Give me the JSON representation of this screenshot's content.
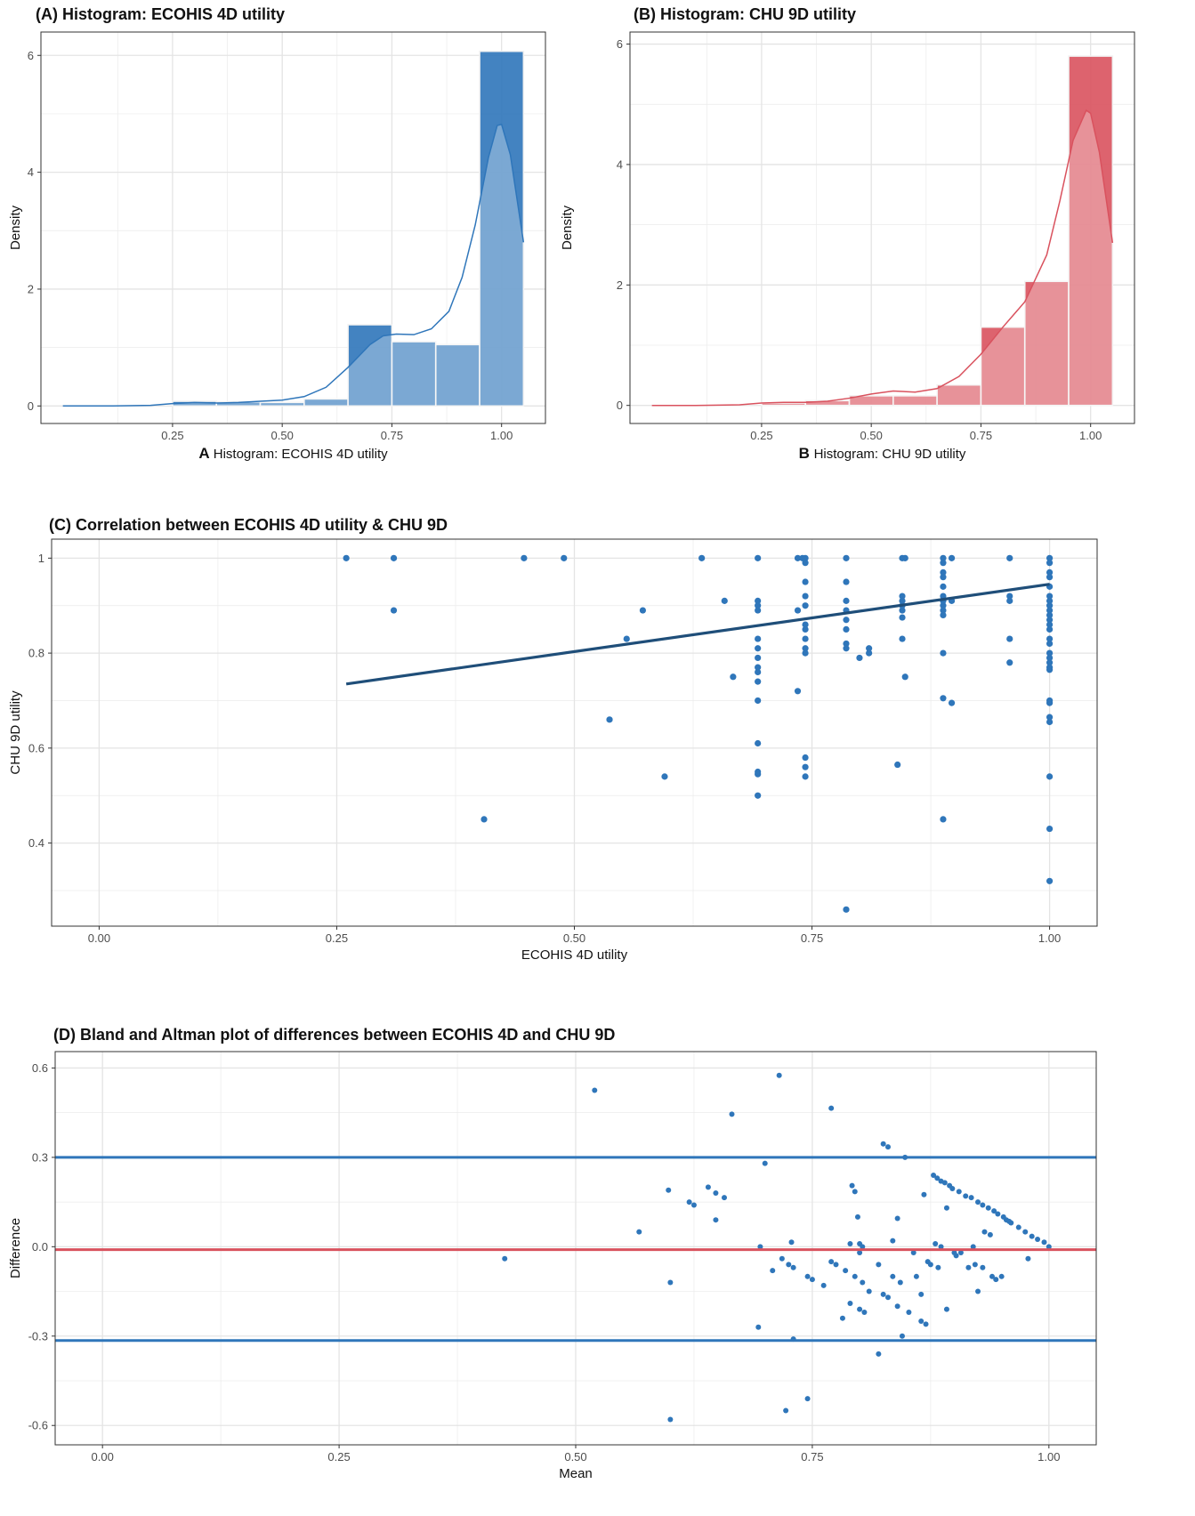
{
  "colors": {
    "blue": "#2f76ba",
    "blue_dark": "#1f4e79",
    "red": "#d9525e",
    "grid": "#ebebeb",
    "axis_text": "#4d4d4d"
  },
  "panels": {
    "a": {
      "title": "(A) Histogram: ECOHIS 4D utility",
      "tag": "A",
      "xlabel": "Histogram: ECOHIS 4D utility",
      "ylabel": "Density"
    },
    "b": {
      "title": "(B) Histogram: CHU 9D utility",
      "tag": "B",
      "xlabel": "Histogram: CHU 9D utility",
      "ylabel": "Density"
    },
    "c": {
      "title": "(C) Correlation between ECOHIS 4D utility & CHU 9D",
      "xlabel": "ECOHIS 4D utility",
      "ylabel": "CHU 9D utility"
    },
    "d": {
      "title": "(D) Bland and Altman plot of differences between ECOHIS 4D and CHU 9D",
      "xlabel": "Mean",
      "ylabel": "Difference"
    }
  },
  "chart_data": [
    {
      "id": "A",
      "type": "bar",
      "title": "(A) Histogram: ECOHIS 4D utility",
      "xlabel": "Histogram: ECOHIS 4D utility",
      "ylabel": "Density",
      "bin_width": 0.1,
      "bin_centers": [
        0.3,
        0.4,
        0.5,
        0.6,
        0.7,
        0.8,
        0.9,
        1.0
      ],
      "values": [
        0.08,
        0.07,
        0.06,
        0.12,
        1.39,
        1.1,
        1.05,
        6.07
      ],
      "density_curve": {
        "x": [
          0.0,
          0.1,
          0.2,
          0.25,
          0.3,
          0.35,
          0.4,
          0.45,
          0.5,
          0.55,
          0.6,
          0.65,
          0.7,
          0.73,
          0.76,
          0.8,
          0.84,
          0.88,
          0.91,
          0.94,
          0.97,
          0.99,
          1.0,
          1.02,
          1.05
        ],
        "y": [
          0.0,
          0.0,
          0.01,
          0.04,
          0.06,
          0.05,
          0.06,
          0.08,
          0.1,
          0.16,
          0.32,
          0.66,
          1.05,
          1.2,
          1.23,
          1.22,
          1.32,
          1.62,
          2.2,
          3.1,
          4.25,
          4.8,
          4.82,
          4.3,
          2.8
        ]
      },
      "xticks": [
        0.25,
        0.5,
        0.75,
        1.0
      ],
      "xtick_labels": [
        "0.25",
        "0.50",
        "0.75",
        "1.00"
      ],
      "yticks": [
        0,
        2,
        4,
        6
      ],
      "xlim": [
        -0.05,
        1.1
      ],
      "ylim": [
        -0.3,
        6.4
      ],
      "color": "#2f76ba"
    },
    {
      "id": "B",
      "type": "bar",
      "title": "(B) Histogram: CHU 9D utility",
      "xlabel": "Histogram: CHU 9D utility",
      "ylabel": "Density",
      "bin_width": 0.1,
      "bin_centers": [
        0.3,
        0.4,
        0.5,
        0.6,
        0.7,
        0.8,
        0.9,
        1.0
      ],
      "values": [
        0.04,
        0.08,
        0.16,
        0.16,
        0.34,
        1.3,
        2.06,
        5.8
      ],
      "density_curve": {
        "x": [
          0.0,
          0.1,
          0.2,
          0.25,
          0.3,
          0.35,
          0.4,
          0.45,
          0.5,
          0.55,
          0.6,
          0.65,
          0.7,
          0.75,
          0.8,
          0.85,
          0.9,
          0.93,
          0.96,
          0.99,
          1.0,
          1.02,
          1.05
        ],
        "y": [
          0.0,
          0.0,
          0.01,
          0.04,
          0.05,
          0.05,
          0.07,
          0.12,
          0.19,
          0.24,
          0.22,
          0.28,
          0.48,
          0.85,
          1.3,
          1.72,
          2.5,
          3.4,
          4.4,
          4.9,
          4.85,
          4.2,
          2.7
        ]
      },
      "xticks": [
        0.25,
        0.5,
        0.75,
        1.0
      ],
      "xtick_labels": [
        "0.25",
        "0.50",
        "0.75",
        "1.00"
      ],
      "yticks": [
        0,
        2,
        4,
        6
      ],
      "xlim": [
        -0.05,
        1.1
      ],
      "ylim": [
        -0.3,
        6.2
      ],
      "color": "#d9525e"
    },
    {
      "id": "C",
      "type": "scatter",
      "title": "(C) Correlation between ECOHIS 4D utility & CHU 9D",
      "xlabel": "ECOHIS 4D utility",
      "ylabel": "CHU 9D utility",
      "points": [
        [
          0.26,
          1.0
        ],
        [
          0.31,
          1.0
        ],
        [
          0.31,
          0.89
        ],
        [
          0.405,
          0.45
        ],
        [
          0.447,
          1.0
        ],
        [
          0.489,
          1.0
        ],
        [
          0.537,
          0.66
        ],
        [
          0.555,
          0.83
        ],
        [
          0.572,
          0.89
        ],
        [
          0.595,
          0.54
        ],
        [
          0.634,
          1.0
        ],
        [
          0.658,
          0.91
        ],
        [
          0.667,
          0.75
        ],
        [
          0.693,
          1.0
        ],
        [
          0.693,
          0.91
        ],
        [
          0.693,
          0.9
        ],
        [
          0.693,
          0.89
        ],
        [
          0.693,
          0.83
        ],
        [
          0.693,
          0.81
        ],
        [
          0.693,
          0.79
        ],
        [
          0.693,
          0.77
        ],
        [
          0.693,
          0.76
        ],
        [
          0.693,
          0.74
        ],
        [
          0.693,
          0.7
        ],
        [
          0.693,
          0.61
        ],
        [
          0.693,
          0.55
        ],
        [
          0.693,
          0.545
        ],
        [
          0.693,
          0.5
        ],
        [
          0.735,
          1.0
        ],
        [
          0.735,
          0.89
        ],
        [
          0.735,
          0.72
        ],
        [
          0.74,
          1.0
        ],
        [
          0.743,
          1.0
        ],
        [
          0.743,
          0.99
        ],
        [
          0.743,
          0.95
        ],
        [
          0.743,
          0.92
        ],
        [
          0.743,
          0.9
        ],
        [
          0.743,
          0.86
        ],
        [
          0.743,
          0.85
        ],
        [
          0.743,
          0.83
        ],
        [
          0.743,
          0.81
        ],
        [
          0.743,
          0.8
        ],
        [
          0.743,
          0.58
        ],
        [
          0.743,
          0.56
        ],
        [
          0.743,
          0.54
        ],
        [
          0.786,
          1.0
        ],
        [
          0.786,
          0.95
        ],
        [
          0.786,
          0.91
        ],
        [
          0.786,
          0.89
        ],
        [
          0.786,
          0.87
        ],
        [
          0.786,
          0.85
        ],
        [
          0.786,
          0.82
        ],
        [
          0.786,
          0.81
        ],
        [
          0.786,
          0.26
        ],
        [
          0.8,
          0.79
        ],
        [
          0.81,
          0.8
        ],
        [
          0.81,
          0.81
        ],
        [
          0.84,
          0.565
        ],
        [
          0.845,
          1.0
        ],
        [
          0.848,
          1.0
        ],
        [
          0.845,
          0.92
        ],
        [
          0.845,
          0.91
        ],
        [
          0.845,
          0.9
        ],
        [
          0.845,
          0.89
        ],
        [
          0.845,
          0.875
        ],
        [
          0.845,
          0.83
        ],
        [
          0.848,
          0.75
        ],
        [
          0.888,
          1.0
        ],
        [
          0.888,
          0.99
        ],
        [
          0.888,
          0.97
        ],
        [
          0.888,
          0.96
        ],
        [
          0.888,
          0.94
        ],
        [
          0.888,
          0.92
        ],
        [
          0.888,
          0.91
        ],
        [
          0.888,
          0.9
        ],
        [
          0.888,
          0.89
        ],
        [
          0.888,
          0.88
        ],
        [
          0.888,
          0.8
        ],
        [
          0.888,
          0.705
        ],
        [
          0.888,
          0.45
        ],
        [
          0.897,
          1.0
        ],
        [
          0.897,
          0.91
        ],
        [
          0.897,
          0.695
        ],
        [
          0.958,
          1.0
        ],
        [
          0.958,
          0.92
        ],
        [
          0.958,
          0.91
        ],
        [
          0.958,
          0.83
        ],
        [
          0.958,
          0.78
        ],
        [
          1.0,
          1.0
        ],
        [
          1.0,
          0.99
        ],
        [
          1.0,
          0.97
        ],
        [
          1.0,
          0.96
        ],
        [
          1.0,
          0.94
        ],
        [
          1.0,
          0.92
        ],
        [
          1.0,
          0.91
        ],
        [
          1.0,
          0.9
        ],
        [
          1.0,
          0.89
        ],
        [
          1.0,
          0.88
        ],
        [
          1.0,
          0.87
        ],
        [
          1.0,
          0.86
        ],
        [
          1.0,
          0.85
        ],
        [
          1.0,
          0.83
        ],
        [
          1.0,
          0.82
        ],
        [
          1.0,
          0.8
        ],
        [
          1.0,
          0.79
        ],
        [
          1.0,
          0.78
        ],
        [
          1.0,
          0.77
        ],
        [
          1.0,
          0.765
        ],
        [
          1.0,
          0.7
        ],
        [
          1.0,
          0.695
        ],
        [
          1.0,
          0.665
        ],
        [
          1.0,
          0.655
        ],
        [
          1.0,
          0.54
        ],
        [
          1.0,
          0.43
        ],
        [
          1.0,
          0.32
        ]
      ],
      "fit_line": {
        "x": [
          0.26,
          1.0
        ],
        "y": [
          0.735,
          0.945
        ]
      },
      "xticks": [
        0.0,
        0.25,
        0.5,
        0.75,
        1.0
      ],
      "xtick_labels": [
        "0.00",
        "0.25",
        "0.50",
        "0.75",
        "1.00"
      ],
      "yticks": [
        0.4,
        0.6,
        0.8,
        1.0
      ],
      "xlim": [
        -0.05,
        1.05
      ],
      "ylim": [
        0.225,
        1.04
      ],
      "point_color": "#2f76ba",
      "line_color": "#1f4e79"
    },
    {
      "id": "D",
      "type": "scatter",
      "title": "(D) Bland and Altman plot of differences between ECOHIS 4D and CHU 9D",
      "xlabel": "Mean",
      "ylabel": "Difference",
      "points": [
        [
          0.425,
          -0.04
        ],
        [
          0.52,
          0.525
        ],
        [
          0.567,
          0.05
        ],
        [
          0.598,
          0.19
        ],
        [
          0.6,
          -0.12
        ],
        [
          0.6,
          -0.58
        ],
        [
          0.62,
          0.15
        ],
        [
          0.625,
          0.14
        ],
        [
          0.64,
          0.2
        ],
        [
          0.648,
          0.18
        ],
        [
          0.648,
          0.09
        ],
        [
          0.657,
          0.165
        ],
        [
          0.665,
          0.445
        ],
        [
          0.693,
          -0.27
        ],
        [
          0.695,
          0.0
        ],
        [
          0.7,
          0.28
        ],
        [
          0.708,
          -0.08
        ],
        [
          0.715,
          0.575
        ],
        [
          0.718,
          -0.04
        ],
        [
          0.722,
          -0.55
        ],
        [
          0.725,
          -0.06
        ],
        [
          0.728,
          0.015
        ],
        [
          0.73,
          -0.07
        ],
        [
          0.73,
          -0.31
        ],
        [
          0.745,
          -0.1
        ],
        [
          0.745,
          -0.51
        ],
        [
          0.75,
          -0.11
        ],
        [
          0.762,
          -0.13
        ],
        [
          0.77,
          0.465
        ],
        [
          0.77,
          -0.05
        ],
        [
          0.775,
          -0.06
        ],
        [
          0.782,
          -0.24
        ],
        [
          0.785,
          -0.08
        ],
        [
          0.79,
          0.01
        ],
        [
          0.79,
          -0.19
        ],
        [
          0.792,
          0.205
        ],
        [
          0.795,
          0.185
        ],
        [
          0.795,
          -0.1
        ],
        [
          0.798,
          0.1
        ],
        [
          0.8,
          0.01
        ],
        [
          0.8,
          -0.02
        ],
        [
          0.8,
          -0.21
        ],
        [
          0.803,
          0.0
        ],
        [
          0.803,
          -0.12
        ],
        [
          0.805,
          -0.22
        ],
        [
          0.81,
          -0.15
        ],
        [
          0.82,
          -0.36
        ],
        [
          0.82,
          -0.06
        ],
        [
          0.825,
          0.345
        ],
        [
          0.825,
          -0.16
        ],
        [
          0.83,
          0.335
        ],
        [
          0.83,
          -0.17
        ],
        [
          0.835,
          0.02
        ],
        [
          0.835,
          -0.1
        ],
        [
          0.84,
          0.095
        ],
        [
          0.84,
          -0.2
        ],
        [
          0.843,
          -0.12
        ],
        [
          0.845,
          -0.3
        ],
        [
          0.848,
          0.3
        ],
        [
          0.852,
          -0.22
        ],
        [
          0.857,
          -0.02
        ],
        [
          0.86,
          -0.1
        ],
        [
          0.865,
          -0.16
        ],
        [
          0.865,
          -0.25
        ],
        [
          0.868,
          0.175
        ],
        [
          0.87,
          -0.26
        ],
        [
          0.872,
          -0.05
        ],
        [
          0.875,
          -0.06
        ],
        [
          0.878,
          0.24
        ],
        [
          0.88,
          0.01
        ],
        [
          0.882,
          0.23
        ],
        [
          0.883,
          -0.07
        ],
        [
          0.886,
          0.22
        ],
        [
          0.886,
          0.0
        ],
        [
          0.89,
          0.215
        ],
        [
          0.892,
          0.13
        ],
        [
          0.892,
          -0.21
        ],
        [
          0.895,
          0.205
        ],
        [
          0.898,
          0.195
        ],
        [
          0.9,
          -0.02
        ],
        [
          0.902,
          -0.03
        ],
        [
          0.905,
          0.185
        ],
        [
          0.907,
          -0.02
        ],
        [
          0.912,
          0.17
        ],
        [
          0.915,
          -0.07
        ],
        [
          0.918,
          0.165
        ],
        [
          0.92,
          0.0
        ],
        [
          0.922,
          -0.06
        ],
        [
          0.925,
          -0.15
        ],
        [
          0.925,
          0.15
        ],
        [
          0.93,
          -0.07
        ],
        [
          0.93,
          0.14
        ],
        [
          0.932,
          0.05
        ],
        [
          0.936,
          0.13
        ],
        [
          0.938,
          0.04
        ],
        [
          0.94,
          -0.1
        ],
        [
          0.942,
          0.12
        ],
        [
          0.944,
          -0.11
        ],
        [
          0.946,
          0.11
        ],
        [
          0.95,
          -0.1
        ],
        [
          0.952,
          0.1
        ],
        [
          0.955,
          0.09
        ],
        [
          0.958,
          0.085
        ],
        [
          0.96,
          0.08
        ],
        [
          0.968,
          0.065
        ],
        [
          0.975,
          0.05
        ],
        [
          0.978,
          -0.04
        ],
        [
          0.982,
          0.035
        ],
        [
          0.988,
          0.025
        ],
        [
          0.995,
          0.015
        ],
        [
          1.0,
          0.0
        ]
      ],
      "hlines": [
        {
          "y": 0.3,
          "color": "#2f76ba"
        },
        {
          "y": -0.01,
          "color": "#d9525e"
        },
        {
          "y": -0.315,
          "color": "#2f76ba"
        }
      ],
      "xticks": [
        0.0,
        0.25,
        0.5,
        0.75,
        1.0
      ],
      "xtick_labels": [
        "0.00",
        "0.25",
        "0.50",
        "0.75",
        "1.00"
      ],
      "yticks": [
        -0.6,
        -0.3,
        0.0,
        0.3,
        0.6
      ],
      "ytick_labels": [
        "-0.6",
        "-0.3",
        "0.0",
        "0.3",
        "0.6"
      ],
      "xlim": [
        -0.05,
        1.05
      ],
      "ylim": [
        -0.665,
        0.655
      ],
      "point_color": "#2f76ba"
    }
  ]
}
